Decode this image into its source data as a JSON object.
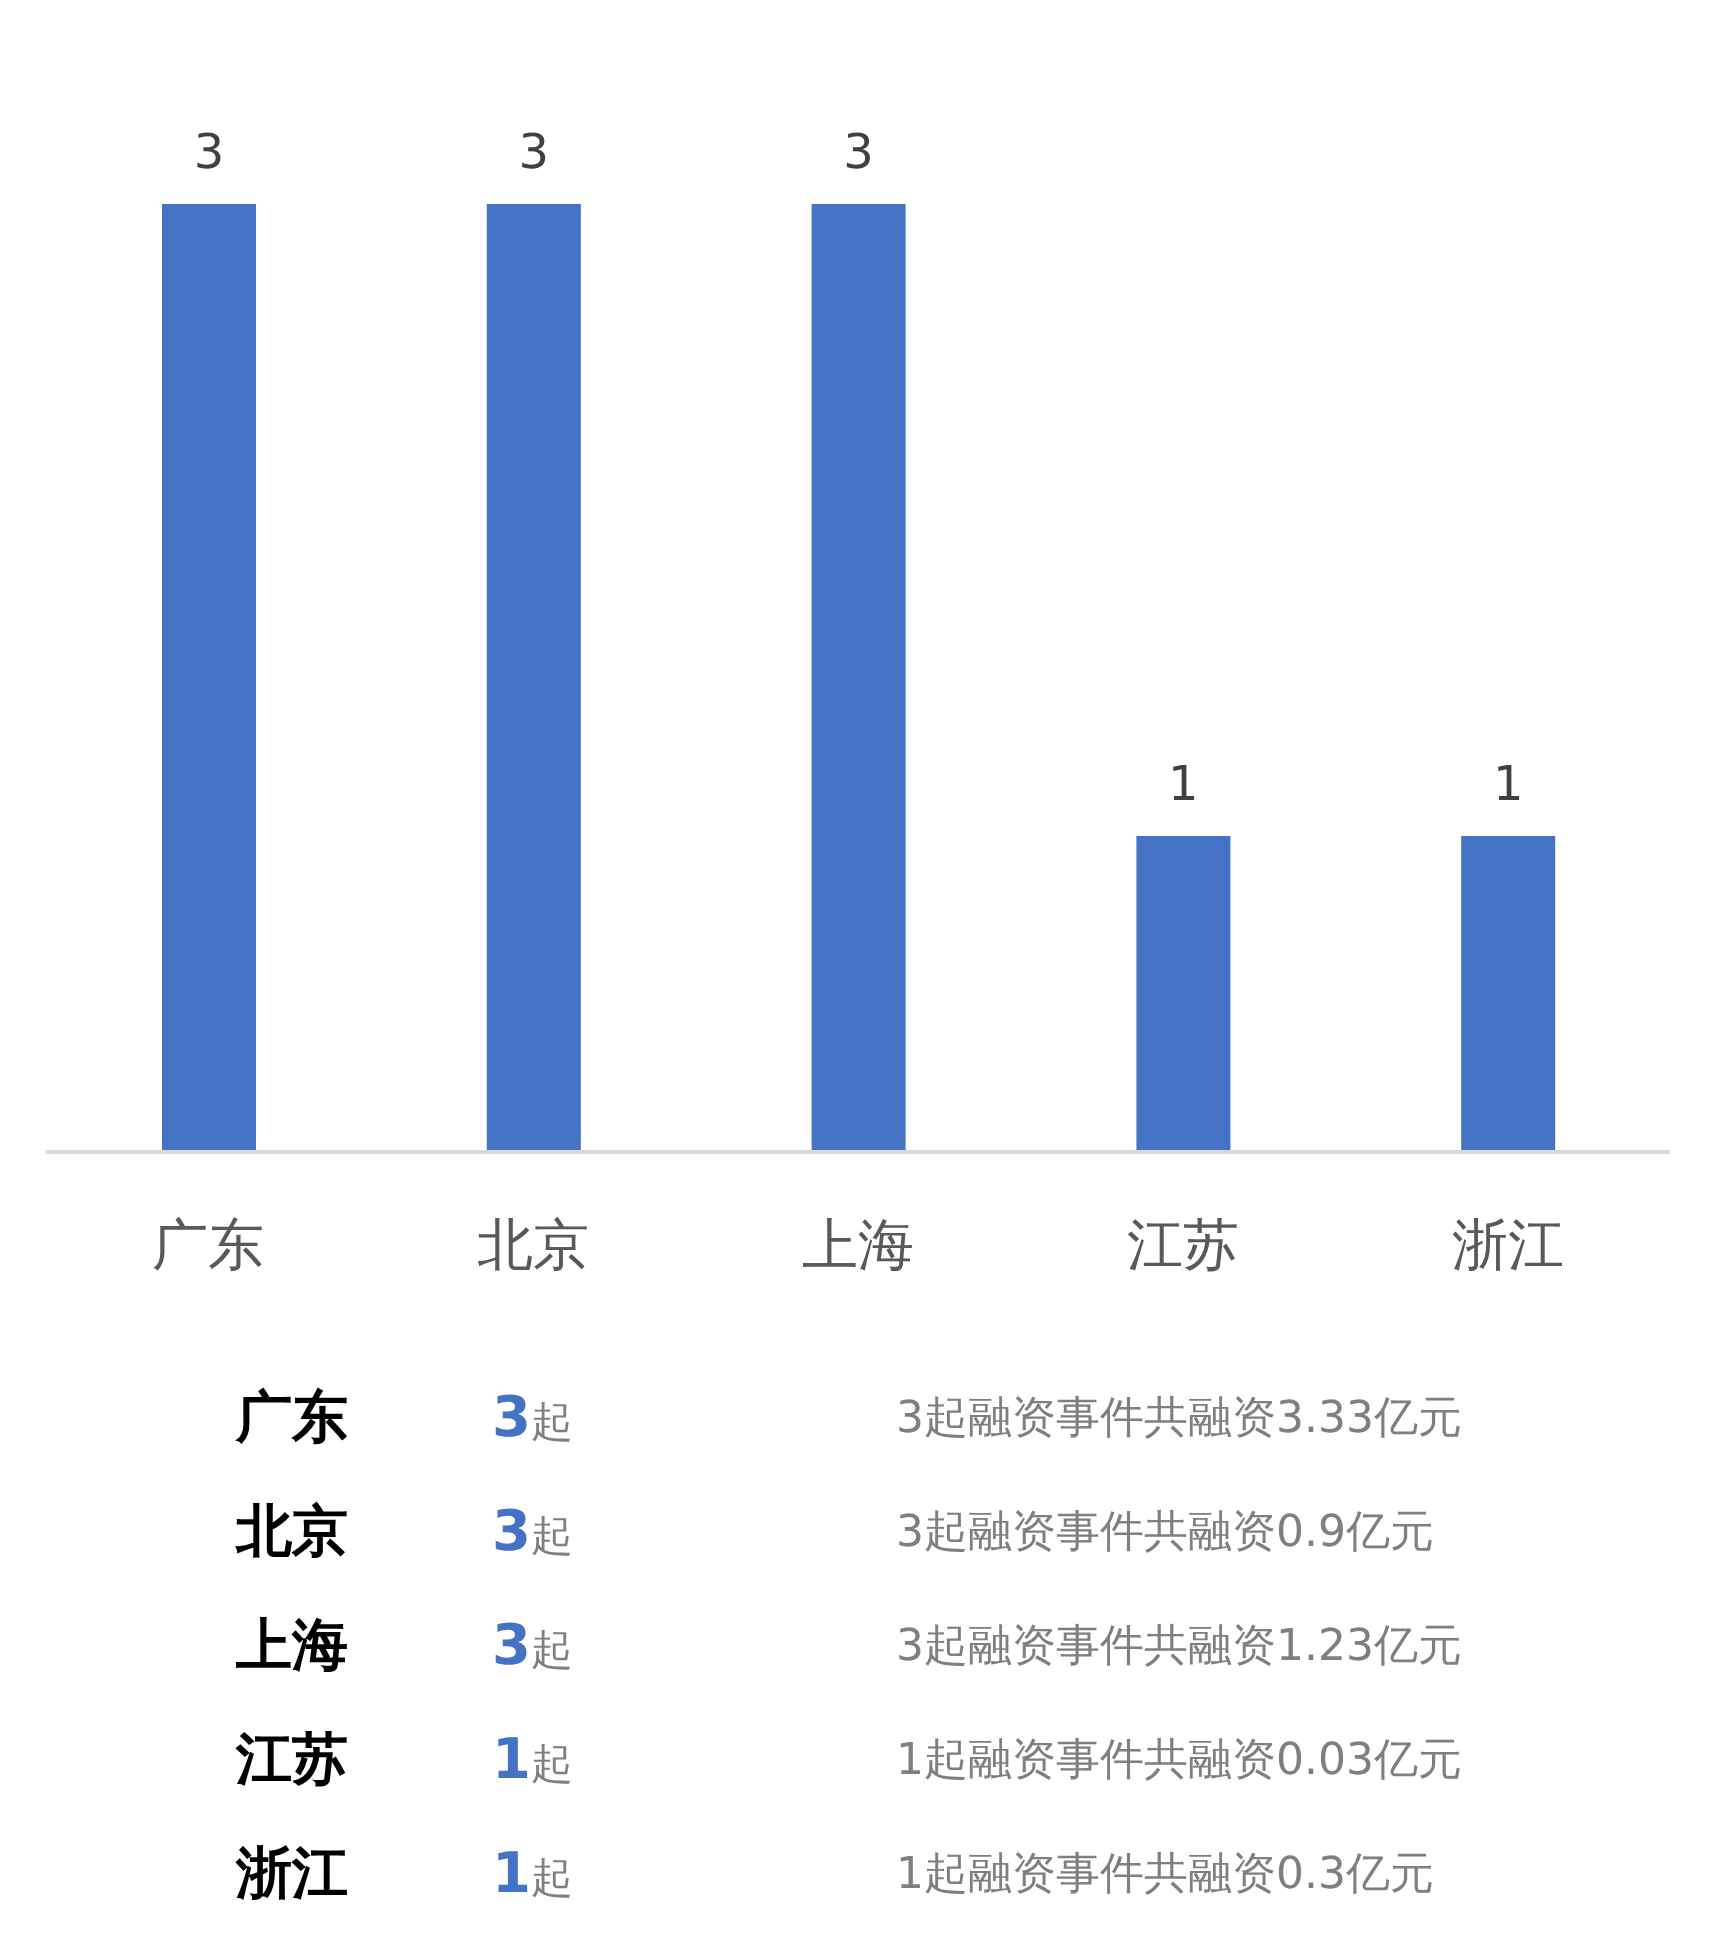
{
  "chart_data": [
    {
      "type": "bar",
      "categories": [
        "广东",
        "北京",
        "上海",
        "江苏",
        "浙江"
      ],
      "values": [
        3,
        3,
        3,
        1,
        1
      ],
      "color": "#4472c4",
      "data_labels": true,
      "tick_labels": "x"
    },
    {
      "type": "other",
      "annotations": [
        "广东",
        "3起",
        "3起融资事件共融资3.33亿元",
        "北京",
        "3起",
        "3起融资事件共融资0.9亿元",
        "上海",
        "3起",
        "3起融资事件共融资1.23亿元",
        "江苏",
        "1起",
        "1起融资事件共融资0.03亿元",
        "浙江",
        "1起",
        "1起融资事件共融资0.3亿元"
      ]
    }
  ]
}
